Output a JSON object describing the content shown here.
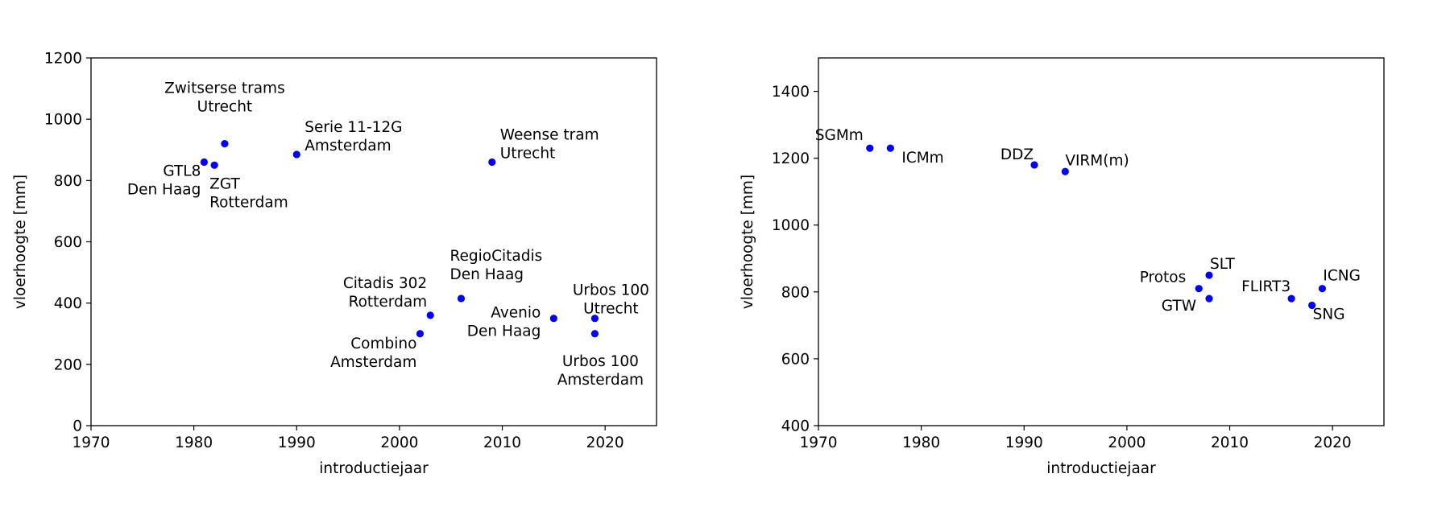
{
  "chart_data": [
    {
      "type": "scatter",
      "xlabel": "introductiejaar",
      "ylabel": "vloerhoogte [mm]",
      "xlim": [
        1970,
        2025
      ],
      "ylim": [
        0,
        1200
      ],
      "xticks": [
        1970,
        1980,
        1990,
        2000,
        2010,
        2020
      ],
      "yticks": [
        0,
        200,
        400,
        600,
        800,
        1000,
        1200
      ],
      "marker_color": "#0000ff",
      "grid": false,
      "points": [
        {
          "x": 1983,
          "y": 920,
          "label": [
            "Zwitserse trams",
            "Utrecht"
          ]
        },
        {
          "x": 1981,
          "y": 860,
          "label": [
            "GTL8",
            "Den Haag"
          ]
        },
        {
          "x": 1982,
          "y": 850,
          "label": [
            "ZGT",
            "Rotterdam"
          ]
        },
        {
          "x": 1990,
          "y": 885,
          "label": [
            "Serie 11-12G",
            "Amsterdam"
          ]
        },
        {
          "x": 2009,
          "y": 860,
          "label": [
            "Weense tram",
            "Utrecht"
          ]
        },
        {
          "x": 2006,
          "y": 415,
          "label": [
            "RegioCitadis",
            "Den Haag"
          ]
        },
        {
          "x": 2003,
          "y": 360,
          "label": [
            "Citadis 302",
            "Rotterdam"
          ]
        },
        {
          "x": 2002,
          "y": 300,
          "label": [
            "Combino",
            "Amsterdam"
          ]
        },
        {
          "x": 2015,
          "y": 350,
          "label": [
            "Avenio",
            "Den Haag"
          ]
        },
        {
          "x": 2019,
          "y": 350,
          "label": [
            "Urbos 100",
            "Utrecht"
          ]
        },
        {
          "x": 2019,
          "y": 300,
          "label": [
            "Urbos 100",
            "Amsterdam"
          ]
        }
      ]
    },
    {
      "type": "scatter",
      "xlabel": "introductiejaar",
      "ylabel": "vloerhoogte [mm]",
      "xlim": [
        1970,
        2025
      ],
      "ylim": [
        400,
        1500
      ],
      "xticks": [
        1970,
        1980,
        1990,
        2000,
        2010,
        2020
      ],
      "yticks": [
        400,
        600,
        800,
        1000,
        1200,
        1400
      ],
      "marker_color": "#0000ff",
      "grid": false,
      "points": [
        {
          "x": 1975,
          "y": 1230,
          "label": [
            "SGMm"
          ]
        },
        {
          "x": 1977,
          "y": 1230,
          "label": [
            "ICMm"
          ]
        },
        {
          "x": 1991,
          "y": 1180,
          "label": [
            "DDZ"
          ]
        },
        {
          "x": 1994,
          "y": 1160,
          "label": [
            "VIRM(m)"
          ]
        },
        {
          "x": 2008,
          "y": 850,
          "label": [
            "SLT"
          ]
        },
        {
          "x": 2007,
          "y": 810,
          "label": [
            "Protos"
          ]
        },
        {
          "x": 2008,
          "y": 780,
          "label": [
            "GTW"
          ]
        },
        {
          "x": 2016,
          "y": 780,
          "label": [
            "FLIRT3"
          ]
        },
        {
          "x": 2019,
          "y": 810,
          "label": [
            "ICNG"
          ]
        },
        {
          "x": 2018,
          "y": 760,
          "label": [
            "SNG"
          ]
        }
      ]
    }
  ]
}
